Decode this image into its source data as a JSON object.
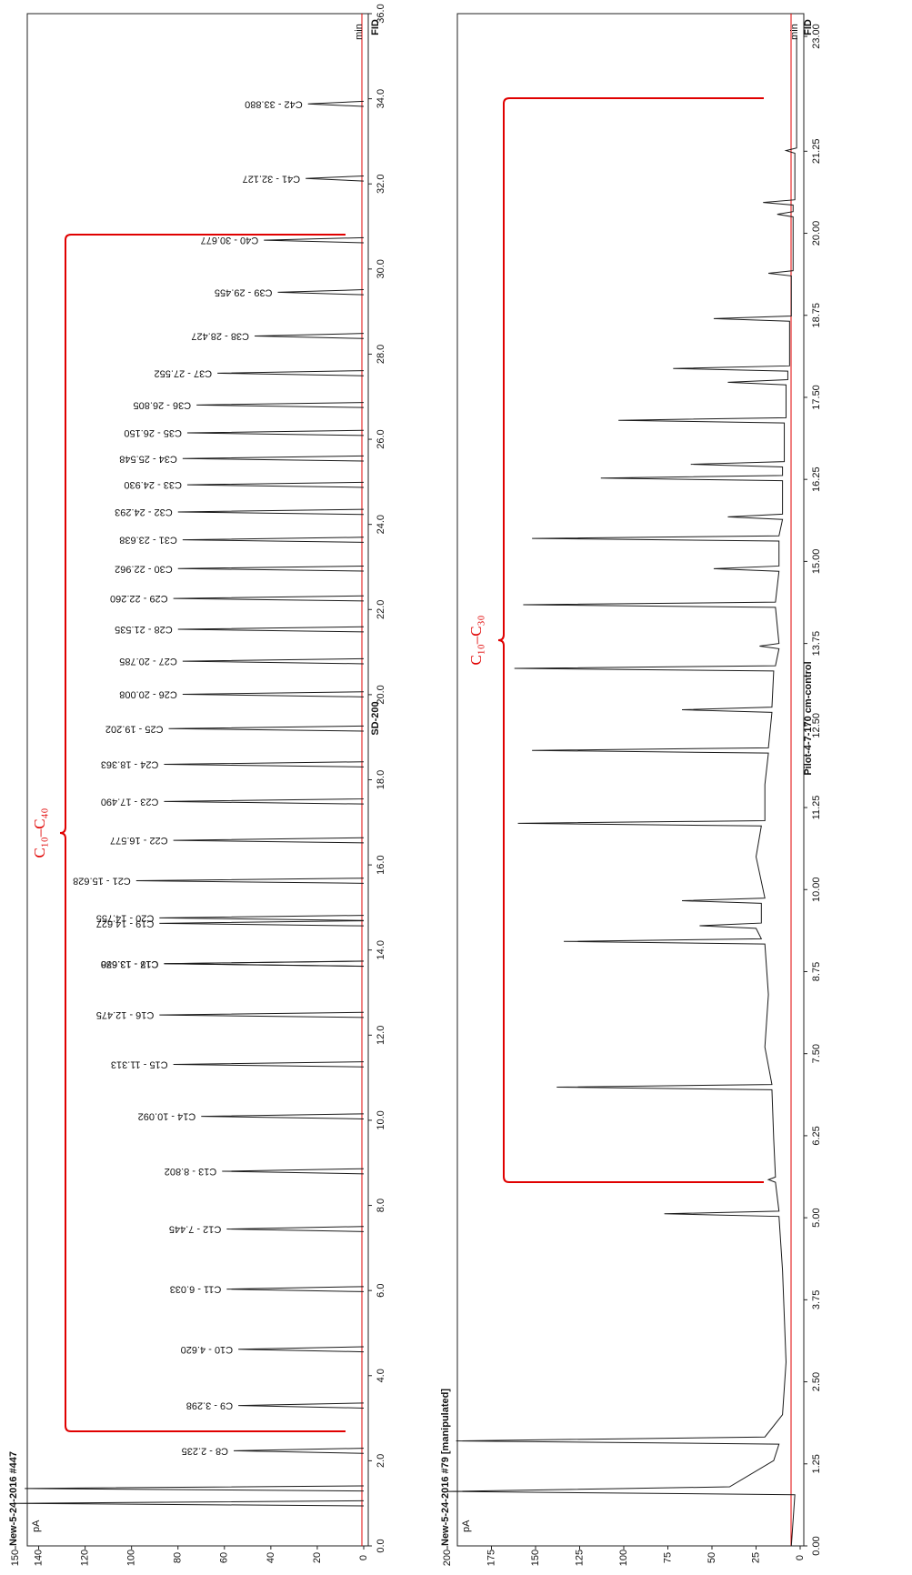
{
  "chart_data": [
    {
      "type": "peak",
      "title": "SD-200",
      "header": "New-5-24-2016 #447",
      "detector": "FID",
      "x_label": "min",
      "y_label": "pA",
      "annotation": "C₁₀–C₄₀",
      "color": "#1a1a1a",
      "xlim": [
        0,
        36
      ],
      "ylim": [
        0,
        150
      ],
      "xticks": [
        {
          "value": 0,
          "label": "0.0"
        },
        {
          "value": 2,
          "label": "2.0"
        },
        {
          "value": 4,
          "label": "4.0"
        },
        {
          "value": 6,
          "label": "6.0"
        },
        {
          "value": 8,
          "label": "8.0"
        },
        {
          "value": 10,
          "label": "10.0"
        },
        {
          "value": 12,
          "label": "12.0"
        },
        {
          "value": 14,
          "label": "14.0"
        },
        {
          "value": 16,
          "label": "16.0"
        },
        {
          "value": 18,
          "label": "18.0"
        },
        {
          "value": 20,
          "label": "20.0"
        },
        {
          "value": 22,
          "label": "22.0"
        },
        {
          "value": 24,
          "label": "24.0"
        },
        {
          "value": 26,
          "label": "26.0"
        },
        {
          "value": 28,
          "label": "28.0"
        },
        {
          "value": 30,
          "label": "30.0"
        },
        {
          "value": 32,
          "label": "32.0"
        },
        {
          "value": 34,
          "label": "34.0"
        },
        {
          "value": 36,
          "label": "36.0"
        }
      ],
      "yticks": [
        0,
        20,
        40,
        60,
        80,
        100,
        120,
        140,
        150
      ],
      "x": [
        1.0,
        1.35,
        2.235,
        3.298,
        4.62,
        6.033,
        7.445,
        8.802,
        10.092,
        11.313,
        12.475,
        13.678,
        13.68,
        14.627,
        14.755,
        15.628,
        16.577,
        17.49,
        18.363,
        19.202,
        20.008,
        20.785,
        21.535,
        22.26,
        22.962,
        23.638,
        24.293,
        24.93,
        25.548,
        26.15,
        26.805,
        27.552,
        28.427,
        29.455,
        30.677,
        32.127,
        33.88
      ],
      "values": [
        150,
        146,
        56,
        54,
        54,
        59,
        59,
        61,
        70,
        82,
        88,
        86,
        86,
        88,
        88,
        98,
        82,
        86,
        86,
        84,
        78,
        78,
        80,
        82,
        80,
        78,
        80,
        76,
        78,
        76,
        72,
        63,
        47,
        37,
        43,
        25,
        24
      ],
      "labels": [
        null,
        null,
        "C8 - 2.235",
        "C9 - 3.298",
        "C10 - 4.620",
        "C11 - 6.033",
        "C12 - 7.445",
        "C13 - 8.802",
        "C14 - 10.092",
        "C15 - 11.313",
        "C16 - 12.475",
        "C17 - 13.678",
        "C18 - 13.680",
        "C19 - 14.627",
        "C20 - 14.755",
        "C21 - 15.628",
        "C22 - 16.577",
        "C23 - 17.490",
        "C24 - 18.363",
        "C25 - 19.202",
        "C26 - 20.008",
        "C27 - 20.785",
        "C28 - 21.535",
        "C29 - 22.260",
        "C30 - 22.962",
        "C31 - 23.638",
        "C32 - 24.293",
        "C33 - 24.930",
        "C34 - 25.548",
        "C35 - 26.150",
        "C36 - 26.805",
        "C37 - 27.552",
        "C38 - 28.427",
        "C39 - 29.455",
        "C40 - 30.677",
        "C41 - 32.127",
        "C42 - 33.880"
      ]
    },
    {
      "type": "line",
      "title": "Pilot-4-7-170 cm-control",
      "header": "New-5-24-2016 #79 [manipulated]",
      "detector": "FID",
      "x_label": "min",
      "y_label": "pA",
      "annotation": "C₁₀–C₃₀",
      "color": "#1a1a1a",
      "xlim": [
        0,
        23
      ],
      "ylim": [
        0,
        200
      ],
      "xticks": [
        {
          "value": 0,
          "label": "0.00"
        },
        {
          "value": 1.25,
          "label": "1.25"
        },
        {
          "value": 2.5,
          "label": "2.50"
        },
        {
          "value": 3.75,
          "label": "3.75"
        },
        {
          "value": 5,
          "label": "5.00"
        },
        {
          "value": 6.25,
          "label": "6.25"
        },
        {
          "value": 7.5,
          "label": "7.50"
        },
        {
          "value": 8.75,
          "label": "8.75"
        },
        {
          "value": 10,
          "label": "10.00"
        },
        {
          "value": 11.25,
          "label": "11.25"
        },
        {
          "value": 12.5,
          "label": "12.50"
        },
        {
          "value": 13.75,
          "label": "13.75"
        },
        {
          "value": 15,
          "label": "15.00"
        },
        {
          "value": 16.25,
          "label": "16.25"
        },
        {
          "value": 17.5,
          "label": "17.50"
        },
        {
          "value": 18.75,
          "label": "18.75"
        },
        {
          "value": 20,
          "label": "20.00"
        },
        {
          "value": 21.25,
          "label": "21.25"
        },
        {
          "value": 23,
          "label": "23.00"
        }
      ],
      "yticks": [
        0,
        25,
        50,
        75,
        100,
        125,
        150,
        175,
        200
      ],
      "x": [
        0,
        0.78,
        0.83,
        0.9,
        1.3,
        1.55,
        1.6,
        1.66,
        2.0,
        2.8,
        3.5,
        4.2,
        5.02,
        5.06,
        5.1,
        5.54,
        5.58,
        5.62,
        6.2,
        6.95,
        6.99,
        7.03,
        7.6,
        8.4,
        9.17,
        9.21,
        9.25,
        9.41,
        9.45,
        9.49,
        9.79,
        9.83,
        9.87,
        10.5,
        10.97,
        11.01,
        11.05,
        11.6,
        12.08,
        12.12,
        12.16,
        12.7,
        12.74,
        12.78,
        13.33,
        13.37,
        13.41,
        13.67,
        13.71,
        13.75,
        14.3,
        14.34,
        14.38,
        14.85,
        14.89,
        14.93,
        15.31,
        15.35,
        15.39,
        15.64,
        15.68,
        15.72,
        16.23,
        16.27,
        16.31,
        16.44,
        16.48,
        16.52,
        17.11,
        17.15,
        17.19,
        17.69,
        17.73,
        17.77,
        17.9,
        17.94,
        17.98,
        18.66,
        18.7,
        18.74,
        19.35,
        19.39,
        19.43,
        20.25,
        20.29,
        20.33,
        20.43,
        20.47,
        20.51,
        21.22,
        21.26,
        21.3,
        23
      ],
      "values": [
        5,
        3,
        200,
        40,
        15,
        12,
        195,
        20,
        10,
        8,
        9,
        10,
        12,
        77,
        12,
        14,
        18,
        14,
        15,
        16,
        138,
        16,
        20,
        18,
        20,
        134,
        22,
        25,
        57,
        22,
        22,
        67,
        20,
        25,
        22,
        160,
        20,
        20,
        18,
        152,
        18,
        16,
        67,
        16,
        15,
        162,
        14,
        12,
        23,
        12,
        14,
        157,
        14,
        12,
        49,
        12,
        12,
        152,
        12,
        10,
        41,
        10,
        10,
        113,
        10,
        10,
        62,
        9,
        9,
        103,
        8,
        8,
        41,
        7,
        7,
        72,
        6,
        6,
        49,
        5,
        5,
        18,
        4,
        4,
        13,
        4,
        4,
        21,
        3,
        3,
        8,
        2,
        2
      ]
    }
  ]
}
